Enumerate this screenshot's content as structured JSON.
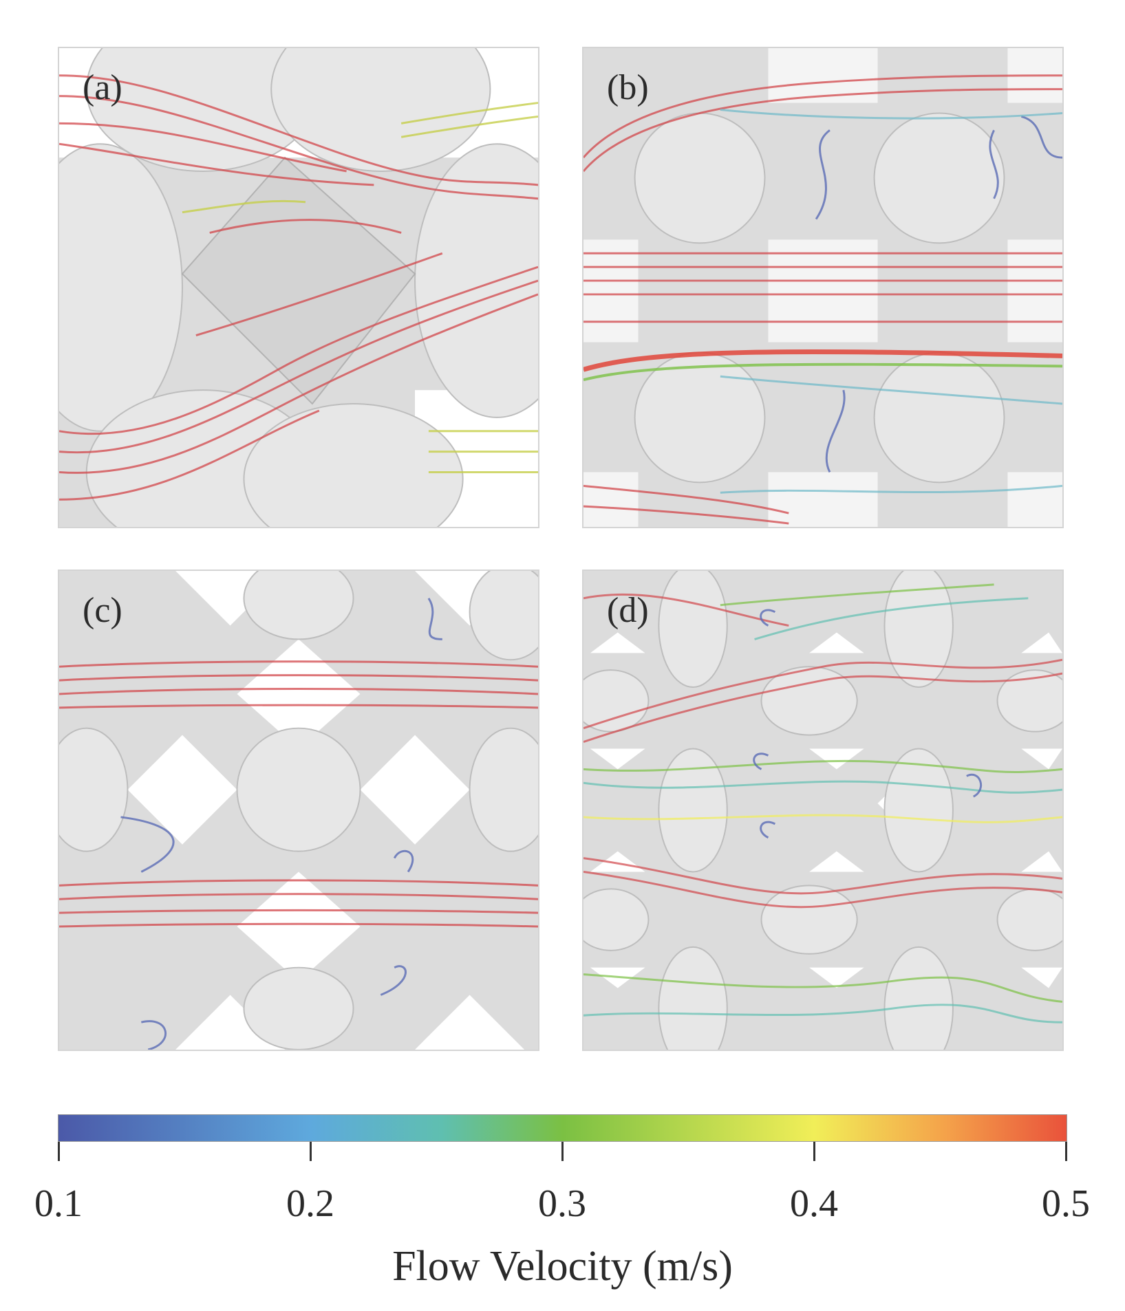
{
  "panels": [
    {
      "id": "a",
      "label": "(a)"
    },
    {
      "id": "b",
      "label": "(b)"
    },
    {
      "id": "c",
      "label": "(c)"
    },
    {
      "id": "d",
      "label": "(d)"
    }
  ],
  "colorbar": {
    "title": "Flow Velocity (m/s)",
    "ticks": [
      "0.1",
      "0.2",
      "0.3",
      "0.4",
      "0.5"
    ],
    "colors": {
      "low": "#4b59a8",
      "mid": "#7bc043",
      "high": "#e9523b"
    }
  }
}
